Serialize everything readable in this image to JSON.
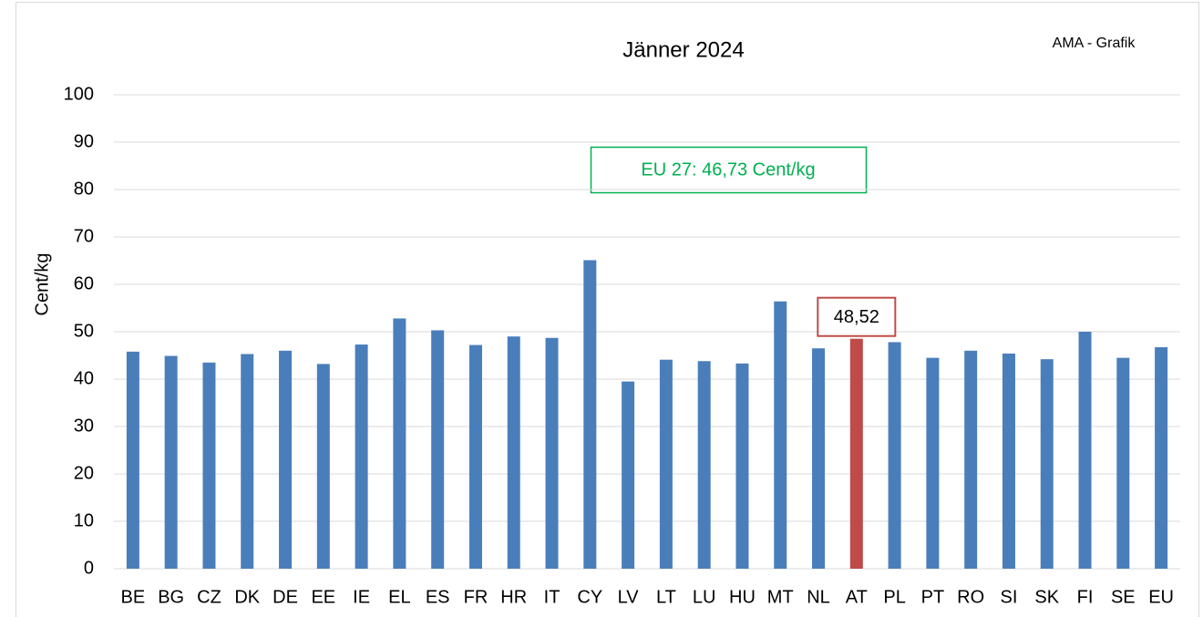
{
  "chart_data": {
    "type": "bar",
    "title": "Jänner 2024",
    "source": "AMA - Grafik",
    "y_label": "Cent/kg",
    "annotation": "EU 27: 46,73 Cent/kg",
    "categories": [
      "BE",
      "BG",
      "CZ",
      "DK",
      "DE",
      "EE",
      "IE",
      "EL",
      "ES",
      "FR",
      "HR",
      "IT",
      "CY",
      "LV",
      "LT",
      "LU",
      "HU",
      "MT",
      "NL",
      "AT",
      "PL",
      "PT",
      "RO",
      "SI",
      "SK",
      "FI",
      "SE",
      "EU"
    ],
    "values": [
      45.8,
      44.9,
      43.5,
      45.3,
      46.0,
      43.2,
      47.3,
      52.8,
      50.3,
      47.2,
      49.0,
      48.7,
      65.1,
      39.5,
      44.1,
      43.8,
      43.3,
      56.4,
      46.5,
      48.52,
      47.8,
      44.5,
      46.0,
      45.4,
      44.2,
      50.0,
      44.5,
      46.73
    ],
    "value_labels": [
      null,
      null,
      null,
      null,
      null,
      null,
      null,
      null,
      null,
      null,
      null,
      null,
      null,
      null,
      null,
      null,
      null,
      null,
      null,
      "48,52",
      null,
      null,
      null,
      null,
      null,
      null,
      null,
      null
    ],
    "colors": [
      "#4a7ebb",
      "#4a7ebb",
      "#4a7ebb",
      "#4a7ebb",
      "#4a7ebb",
      "#4a7ebb",
      "#4a7ebb",
      "#4a7ebb",
      "#4a7ebb",
      "#4a7ebb",
      "#4a7ebb",
      "#4a7ebb",
      "#4a7ebb",
      "#4a7ebb",
      "#4a7ebb",
      "#4a7ebb",
      "#4a7ebb",
      "#4a7ebb",
      "#4a7ebb",
      "#be4b48",
      "#4a7ebb",
      "#4a7ebb",
      "#4a7ebb",
      "#4a7ebb",
      "#4a7ebb",
      "#4a7ebb",
      "#4a7ebb",
      "#4a7ebb"
    ],
    "ylim": [
      0,
      100
    ],
    "yticks": [
      0,
      10,
      20,
      30,
      40,
      50,
      60,
      70,
      80,
      90,
      100
    ],
    "grid": true
  }
}
